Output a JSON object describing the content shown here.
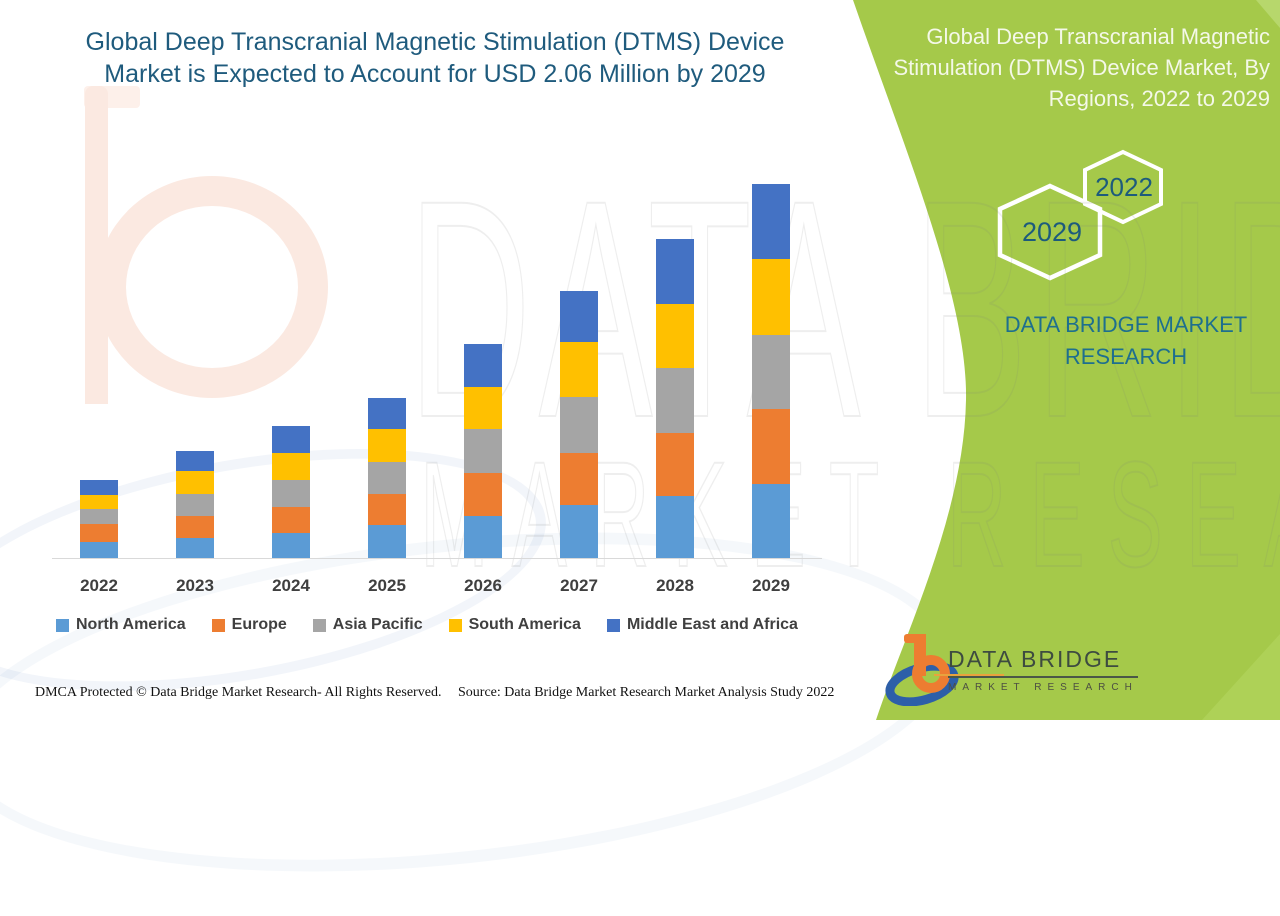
{
  "title": {
    "line1": "Global Deep Transcranial Magnetic Stimulation (DTMS) Device",
    "line2": "Market is Expected to Account for USD 2.06 Million by 2029"
  },
  "side_panel": {
    "heading": "Global Deep Transcranial Magnetic Stimulation (DTMS) Device Market, By Regions, 2022 to 2029",
    "hexagons": [
      {
        "label": "2022"
      },
      {
        "label": "2029"
      }
    ],
    "brand": "DATA BRIDGE MARKET RESEARCH"
  },
  "chart_data": {
    "type": "bar",
    "stacked": true,
    "unit": "USD Million",
    "title": "Global Deep Transcranial Magnetic Stimulation (DTMS) Device Market is Expected to Account for USD 2.06 Million by 2029",
    "xlabel": "",
    "ylabel": "",
    "axis_visible": false,
    "ylim": [
      0,
      2.2
    ],
    "legend_position": "bottom",
    "grid": false,
    "total_2029": 2.06,
    "categories": [
      "2022",
      "2023",
      "2024",
      "2025",
      "2026",
      "2027",
      "2028",
      "2029"
    ],
    "series": [
      {
        "name": "North America",
        "color": "#5B9BD5",
        "values": [
          0.09,
          0.11,
          0.14,
          0.18,
          0.23,
          0.29,
          0.34,
          0.41
        ]
      },
      {
        "name": "Europe",
        "color": "#ED7D31",
        "values": [
          0.1,
          0.12,
          0.14,
          0.17,
          0.24,
          0.29,
          0.35,
          0.41
        ]
      },
      {
        "name": "Asia Pacific",
        "color": "#A5A5A5",
        "values": [
          0.08,
          0.12,
          0.15,
          0.18,
          0.24,
          0.31,
          0.36,
          0.41
        ]
      },
      {
        "name": "South America",
        "color": "#FFC000",
        "values": [
          0.08,
          0.13,
          0.15,
          0.18,
          0.23,
          0.3,
          0.35,
          0.42
        ]
      },
      {
        "name": "Middle East and Africa",
        "color": "#4472C4",
        "values": [
          0.08,
          0.11,
          0.15,
          0.17,
          0.24,
          0.28,
          0.36,
          0.41
        ]
      }
    ]
  },
  "watermark": {
    "line1": "DATA BRIDGE",
    "line2": "MARKET RESEARCH"
  },
  "logo": {
    "line1": "DATA BRIDGE",
    "line2": "MARKET RESEARCH"
  },
  "footer": {
    "left": "DMCA Protected © Data Bridge Market Research- All Rights Reserved.",
    "source": "Source: Data Bridge Market Research Market Analysis Study 2022"
  },
  "colors": {
    "panel_green": "#a5c94a",
    "panel_green_light": "#b7d76c",
    "title_blue": "#1f5b7d",
    "brand_teal": "#1e6f8e",
    "hex_year_text": "#1d5b7c",
    "axis_line": "#d9d9d9",
    "legend_text": "#404040"
  }
}
